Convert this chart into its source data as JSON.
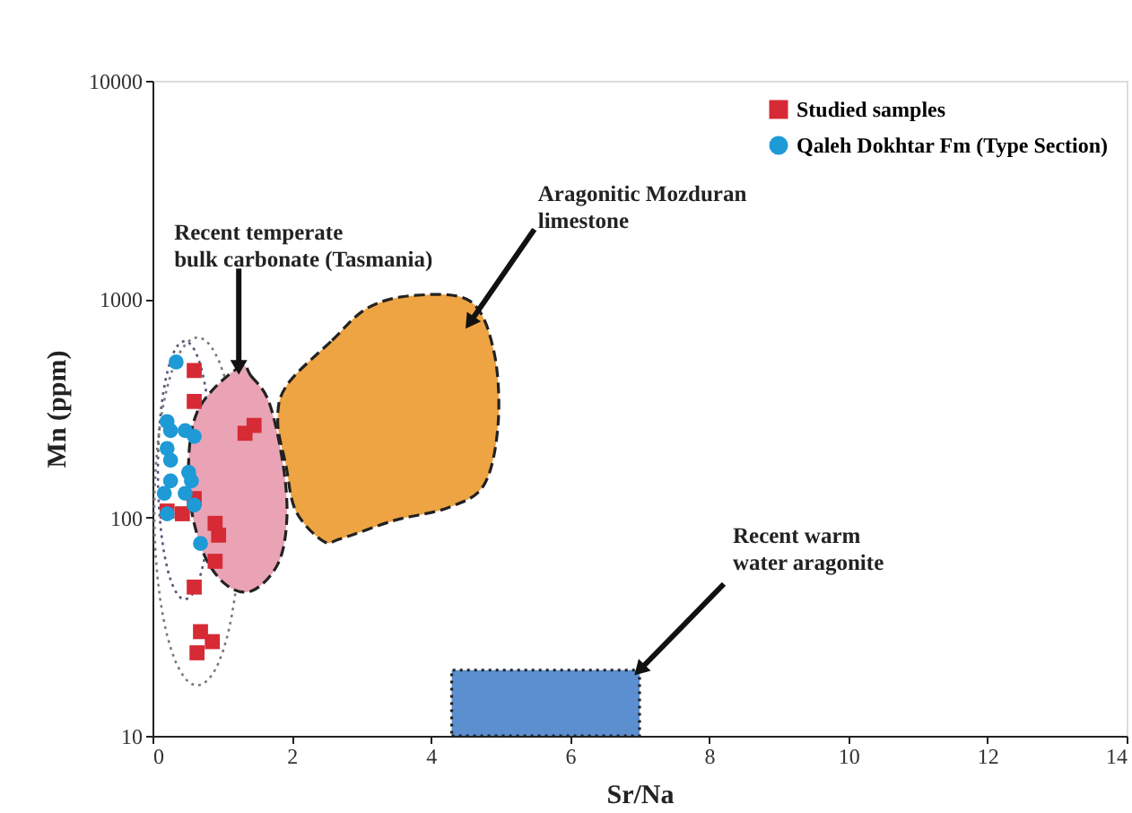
{
  "chart_data": {
    "type": "scatter",
    "xlabel": "Sr/Na",
    "ylabel": "Mn (ppm)",
    "log": "y",
    "xlim": [
      0,
      14
    ],
    "xticks": [
      0,
      2,
      4,
      6,
      8,
      10,
      12,
      14
    ],
    "ylim": [
      10,
      10000
    ],
    "yticks": [
      10,
      100,
      {
        "value": 1000,
        "label": "1000"
      },
      {
        "value": 10000,
        "label": "10000"
      }
    ],
    "grid": false,
    "legend": "top right",
    "series": [
      {
        "type": "area",
        "line_style": "dashed",
        "color": "#eea443",
        "x": [
          1.93,
          2.58,
          3.09,
          3.74,
          4.56,
          4.9,
          4.97,
          4.77,
          4.25,
          3.48,
          2.71,
          2.45,
          2.06,
          1.92,
          1.8
        ],
        "values": [
          403,
          647,
          910,
          1038,
          981,
          589,
          276,
          142,
          111,
          97,
          80,
          78,
          107,
          172,
          276
        ]
      },
      {
        "type": "area",
        "line_style": "dashed",
        "color": "#e9a3b4",
        "x": [
          1.24,
          1.42,
          1.68,
          1.88,
          1.93,
          1.8,
          1.42,
          1.03,
          0.7,
          0.52,
          0.64
        ],
        "values": [
          487,
          443,
          334,
          172,
          97,
          61,
          46,
          50,
          73,
          142,
          303
        ]
      },
      {
        "type": "area",
        "line_style": "dotted",
        "color": "#5b8fd0",
        "x": [
          4.3,
          7.0,
          7.0,
          4.3
        ],
        "values": [
          10,
          10,
          20,
          20
        ]
      },
      {
        "name": "Studied samples",
        "marker": "square",
        "color": "#d62a35",
        "x": [
          0.6,
          0.6,
          1.33,
          1.46,
          0.21,
          0.43,
          0.6,
          0.9,
          0.95,
          0.9,
          0.6,
          0.69,
          0.86,
          0.64
        ],
        "values": [
          471,
          340,
          243,
          264,
          107,
          104,
          122,
          94,
          83,
          63,
          48,
          30,
          27,
          24
        ]
      },
      {
        "name": "Qaleh Dokhtar Fm (Type Section)",
        "marker": "circle",
        "color": "#1e9ad6",
        "x": [
          0.34,
          0.21,
          0.26,
          0.47,
          0.6,
          0.21,
          0.26,
          0.52,
          0.26,
          0.56,
          0.17,
          0.47,
          0.6,
          0.69,
          0.21
        ],
        "values": [
          515,
          275,
          250,
          250,
          235,
          207,
          183,
          161,
          147,
          147,
          129,
          129,
          114,
          76,
          104
        ]
      }
    ],
    "annotations": [
      {
        "text": "Recent temperate\nbulk carbonate (Tasmania)",
        "x": 1.24,
        "y": 487
      },
      {
        "text": "Aragonitic Mozduran\nlimestone",
        "x": 4.56,
        "y": 780
      },
      {
        "text": "Recent warm\nwater aragonite",
        "x": 7.0,
        "y": 20
      }
    ]
  }
}
